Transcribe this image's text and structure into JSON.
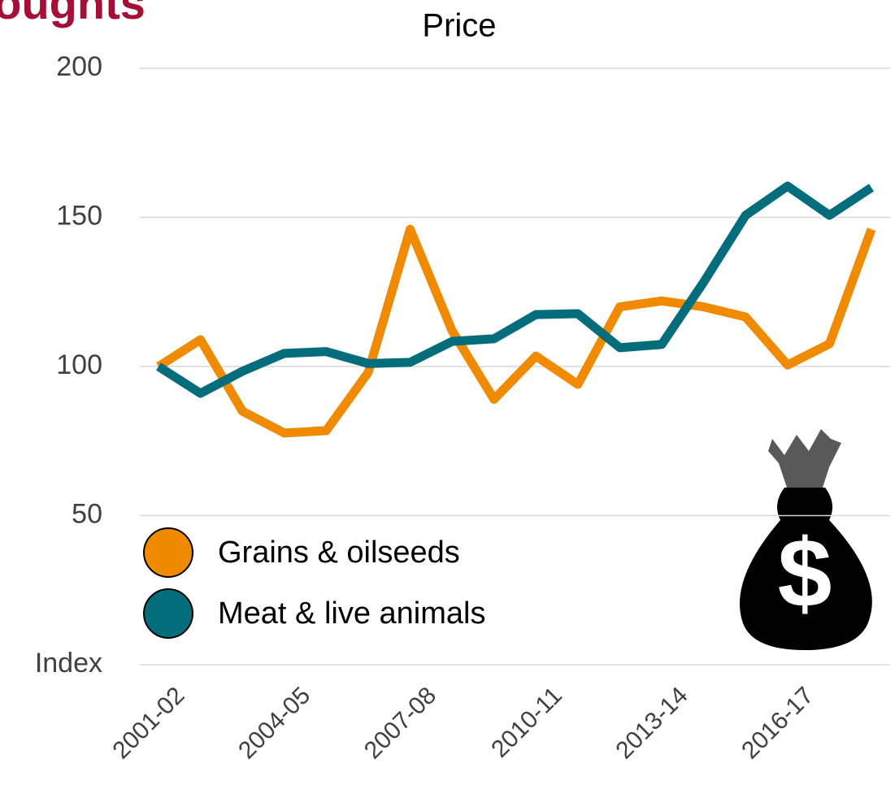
{
  "chart_data": {
    "type": "line",
    "heading": "Droughts",
    "title": "Price",
    "categories": [
      "2001-02",
      null,
      null,
      "2004-05",
      null,
      null,
      "2007-08",
      null,
      null,
      "2010-11",
      null,
      null,
      "2013-14",
      null,
      null,
      "2016-17",
      null,
      null
    ],
    "series": [
      {
        "name": "Grains & oilseeds",
        "color": "#f08a00",
        "values": [
          100,
          109,
          85,
          77.7,
          78.5,
          98,
          146,
          112,
          89,
          103.5,
          94,
          120,
          122,
          120,
          116.6,
          100.5,
          107.6,
          146
        ]
      },
      {
        "name": "Meat & live animals",
        "color": "#036d7c",
        "values": [
          100,
          91,
          98.4,
          104.4,
          105,
          101,
          101.4,
          108.4,
          109.3,
          117.4,
          117.7,
          106.3,
          107.4,
          128.3,
          150.7,
          160.5,
          150.7,
          160
        ]
      }
    ],
    "ylim": [
      0,
      200
    ],
    "yticks": [
      {
        "value": 0,
        "label": "Index"
      },
      50,
      100,
      150,
      200
    ],
    "grid": true,
    "legend": "bottom-left"
  }
}
